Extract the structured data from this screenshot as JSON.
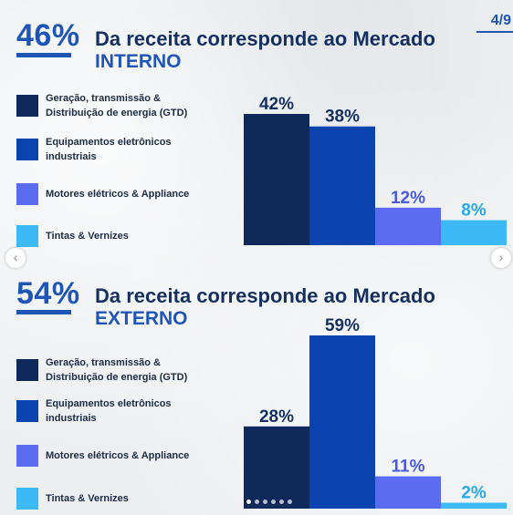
{
  "page_indicator": "4/9",
  "colors": {
    "gtd": "#0f2a5a",
    "equip": "#0b43b0",
    "motores": "#5b6cf2",
    "tintas": "#3cbaf6",
    "accent": "#1f55b5"
  },
  "sections": [
    {
      "big_pct": "46%",
      "headline": "Da receita corresponde ao Mercado",
      "headline2": "INTERNO",
      "legend": [
        "Geração, transmissão & Distribuição de energia (GTD)",
        "Equipamentos eletrônicos industriais",
        "Motores elétricos & Appliance",
        "Tintas & Vernizes"
      ]
    },
    {
      "big_pct": "54%",
      "headline": "Da receita corresponde ao Mercado",
      "headline2": "EXTERNO",
      "legend": [
        "Geração, transmissão & Distribuição de energia (GTD)",
        "Equipamentos eletrônicos industriais",
        "Motores elétricos & Appliance",
        "Tintas & Vernizes"
      ]
    }
  ],
  "chart_data": [
    {
      "type": "bar",
      "categories": [
        "Geração, transmissão & Distribuição de energia (GTD)",
        "Equipamentos eletrônicos industriais",
        "Motores elétricos & Appliance",
        "Tintas & Vernizes"
      ],
      "values": [
        42,
        38,
        12,
        8
      ],
      "labels": [
        "42%",
        "38%",
        "12%",
        "8%"
      ],
      "colors": [
        "#0f2a5a",
        "#0b43b0",
        "#5b6cf2",
        "#3cbaf6"
      ],
      "title": "Da receita corresponde ao Mercado INTERNO",
      "xlabel": "",
      "ylabel": "",
      "ylim": [
        0,
        42
      ],
      "grid": false
    },
    {
      "type": "bar",
      "categories": [
        "Geração, transmissão & Distribuição de energia (GTD)",
        "Equipamentos eletrônicos industriais",
        "Motores elétricos & Appliance",
        "Tintas & Vernizes"
      ],
      "values": [
        28,
        59,
        11,
        2
      ],
      "labels": [
        "28%",
        "59%",
        "11%",
        "2%"
      ],
      "colors": [
        "#0f2a5a",
        "#0b43b0",
        "#5b6cf2",
        "#3cbaf6"
      ],
      "title": "Da receita corresponde ao Mercado EXTERNO",
      "xlabel": "",
      "ylabel": "",
      "ylim": [
        0,
        59
      ],
      "grid": false
    }
  ],
  "carousel": {
    "dot_count": 6,
    "active_dot": 0
  },
  "nav": {
    "prev_icon": "chevron-left-icon",
    "next_icon": "chevron-right-icon"
  }
}
